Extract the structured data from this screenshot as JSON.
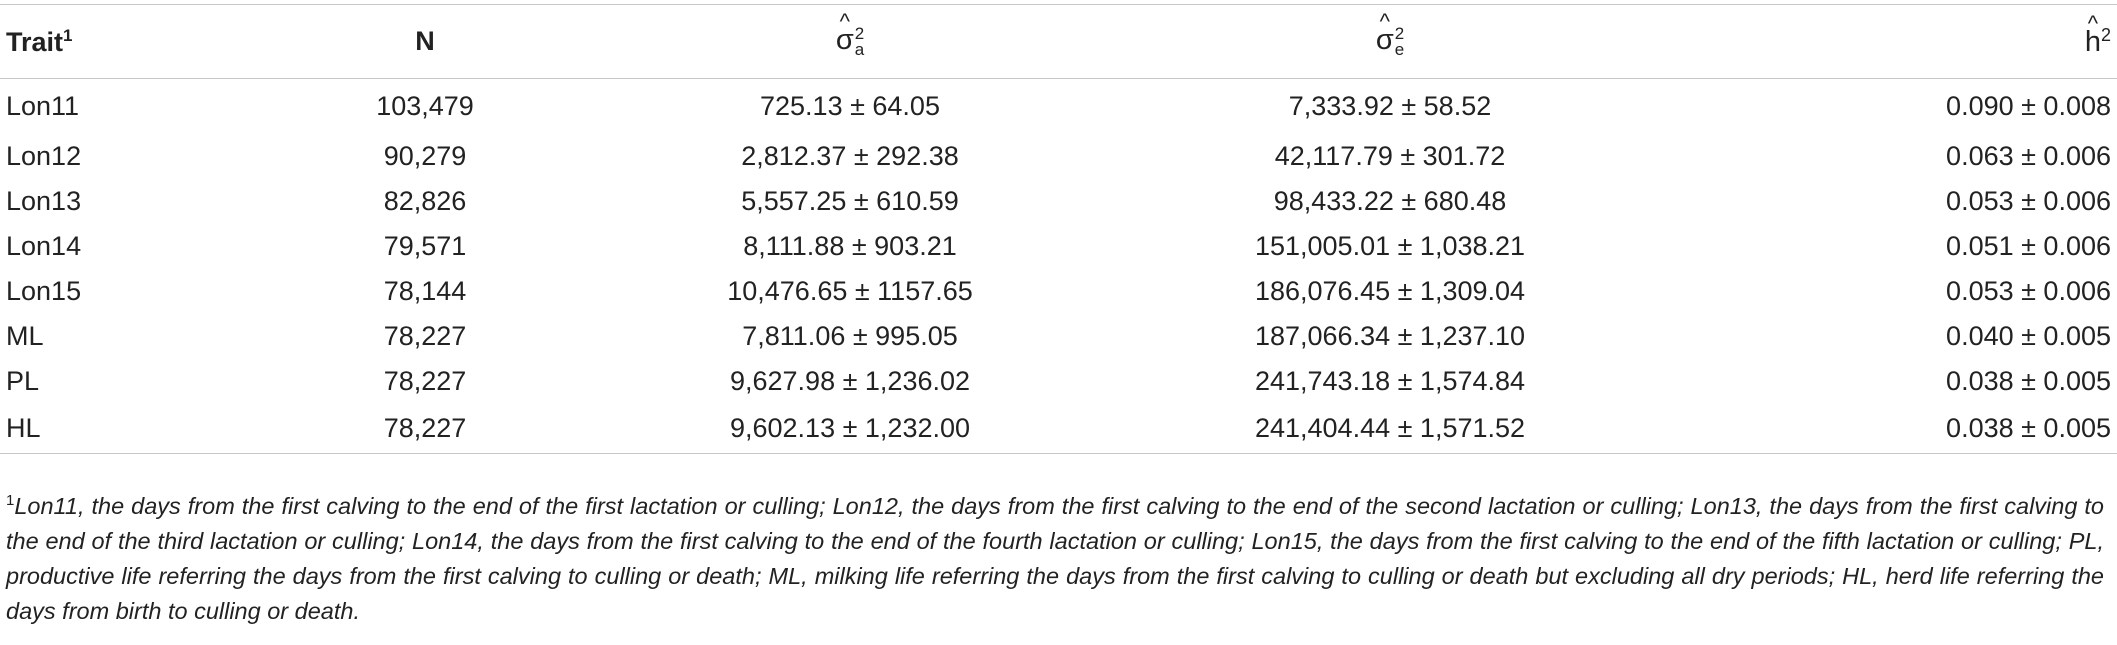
{
  "table": {
    "headers": {
      "trait": "Trait",
      "trait_sup": "1",
      "n": "N",
      "sigma_a": {
        "base": "σ",
        "hat": "^",
        "sup": "2",
        "sub": "a"
      },
      "sigma_e": {
        "base": "σ",
        "hat": "^",
        "sup": "2",
        "sub": "e"
      },
      "h2": {
        "base": "h",
        "hat": "^",
        "sup": "2"
      }
    },
    "rows": [
      {
        "trait": "Lon11",
        "n": "103,479",
        "sigma_a": "725.13 ± 64.05",
        "sigma_e": "7,333.92 ± 58.52",
        "h2": "0.090 ± 0.008"
      },
      {
        "trait": "Lon12",
        "n": "90,279",
        "sigma_a": "2,812.37 ± 292.38",
        "sigma_e": "42,117.79 ± 301.72",
        "h2": "0.063 ± 0.006"
      },
      {
        "trait": "Lon13",
        "n": "82,826",
        "sigma_a": "5,557.25 ± 610.59",
        "sigma_e": "98,433.22 ± 680.48",
        "h2": "0.053 ± 0.006"
      },
      {
        "trait": "Lon14",
        "n": "79,571",
        "sigma_a": "8,111.88 ± 903.21",
        "sigma_e": "151,005.01 ± 1,038.21",
        "h2": "0.051 ± 0.006"
      },
      {
        "trait": "Lon15",
        "n": "78,144",
        "sigma_a": "10,476.65 ± 1157.65",
        "sigma_e": "186,076.45 ± 1,309.04",
        "h2": "0.053 ± 0.006"
      },
      {
        "trait": "ML",
        "n": "78,227",
        "sigma_a": "7,811.06 ± 995.05",
        "sigma_e": "187,066.34 ± 1,237.10",
        "h2": "0.040 ± 0.005"
      },
      {
        "trait": "PL",
        "n": "78,227",
        "sigma_a": "9,627.98 ± 1,236.02",
        "sigma_e": "241,743.18 ± 1,574.84",
        "h2": "0.038 ± 0.005"
      },
      {
        "trait": "HL",
        "n": "78,227",
        "sigma_a": "9,602.13 ± 1,232.00",
        "sigma_e": "241,404.44 ± 1,571.52",
        "h2": "0.038 ± 0.005"
      }
    ]
  },
  "footnote": {
    "marker": "1",
    "text": "Lon11, the days from the first calving to the end of the first lactation or culling; Lon12, the days from the first calving to the end of the second lactation or culling; Lon13, the days from the first calving to the end of the third lactation or culling; Lon14, the days from the first calving to the end of the fourth lactation or culling; Lon15, the days from the first calving to the end of the fifth lactation or culling; PL, productive life referring the days from the first calving to culling or death; ML, milking life referring the days from the first calving to culling or death but excluding all dry periods; HL, herd life referring the days from birth to culling or death."
  }
}
